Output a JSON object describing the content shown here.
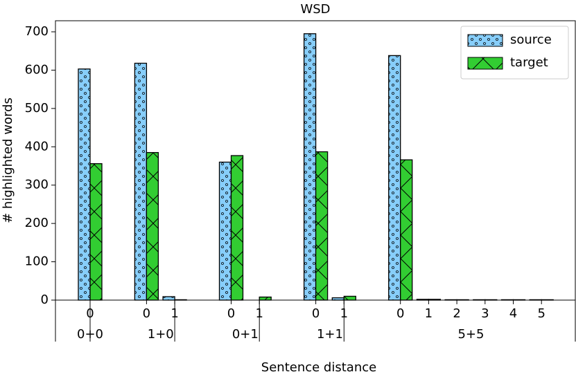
{
  "chart_data": {
    "type": "bar",
    "title": "WSD",
    "xlabel": "Sentence distance",
    "ylabel": "# highlighted words",
    "groups": [
      {
        "label": "0+0",
        "categories": [
          "0"
        ]
      },
      {
        "label": "1+0",
        "categories": [
          "0",
          "1"
        ]
      },
      {
        "label": "0+1",
        "categories": [
          "0",
          "1"
        ]
      },
      {
        "label": "1+1",
        "categories": [
          "0",
          "1"
        ]
      },
      {
        "label": "5+5",
        "categories": [
          "0",
          "1",
          "2",
          "3",
          "4",
          "5"
        ]
      }
    ],
    "series": [
      {
        "name": "source",
        "color": "#87cefa",
        "values": [
          603,
          618,
          9,
          360,
          0,
          695,
          6,
          638,
          2,
          1,
          1,
          1,
          1
        ]
      },
      {
        "name": "target",
        "color": "#32cd32",
        "values": [
          356,
          385,
          1,
          377,
          8,
          387,
          10,
          366,
          2,
          1,
          1,
          1,
          1
        ]
      }
    ],
    "ylim": [
      0,
      700
    ],
    "yticks": [
      0,
      100,
      200,
      300,
      400,
      500,
      600,
      700
    ],
    "legend": "upper right"
  }
}
